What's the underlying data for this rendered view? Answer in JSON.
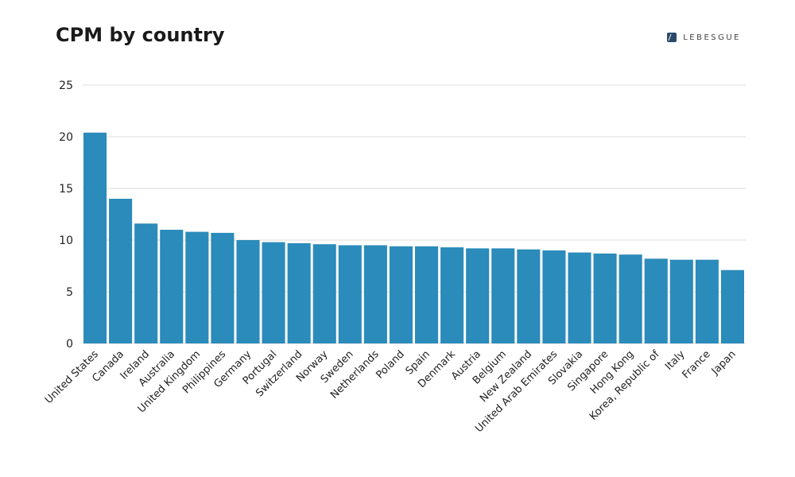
{
  "title": "CPM by country",
  "brand": {
    "name": "LEBESGUE",
    "icon": "lebesgue-logo-icon"
  },
  "colors": {
    "bar": "#2b8bba",
    "grid": "#dddddd",
    "text": "#222222"
  },
  "chart_data": {
    "type": "bar",
    "title": "CPM by country",
    "xlabel": "",
    "ylabel": "",
    "ylim": [
      0,
      25
    ],
    "yticks": [
      0,
      5,
      10,
      15,
      20,
      25
    ],
    "grid": true,
    "categories": [
      "United States",
      "Canada",
      "Ireland",
      "Australia",
      "United Kingdom",
      "Philippines",
      "Germany",
      "Portugal",
      "Switzerland",
      "Norway",
      "Sweden",
      "Netherlands",
      "Poland",
      "Spain",
      "Denmark",
      "Austria",
      "Belgium",
      "New Zealand",
      "United Arab Emirates",
      "Slovakia",
      "Singapore",
      "Hong Kong",
      "Korea, Republic of",
      "Italy",
      "France",
      "Japan"
    ],
    "values": [
      20.4,
      14.0,
      11.6,
      11.0,
      10.8,
      10.7,
      10.0,
      9.8,
      9.7,
      9.6,
      9.5,
      9.5,
      9.4,
      9.4,
      9.3,
      9.2,
      9.2,
      9.1,
      9.0,
      8.8,
      8.7,
      8.6,
      8.2,
      8.1,
      8.1,
      7.1
    ]
  }
}
